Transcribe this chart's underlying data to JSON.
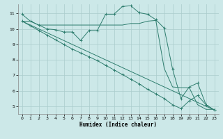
{
  "xlabel": "Humidex (Indice chaleur)",
  "bg_color": "#cce8e8",
  "grid_color": "#aacccc",
  "line_color": "#2e7d6e",
  "xlim": [
    -0.5,
    23.5
  ],
  "ylim": [
    4.5,
    11.6
  ],
  "xticks": [
    0,
    1,
    2,
    3,
    4,
    5,
    6,
    7,
    8,
    9,
    10,
    11,
    12,
    13,
    14,
    15,
    16,
    17,
    18,
    19,
    20,
    21,
    22,
    23
  ],
  "yticks": [
    5,
    6,
    7,
    8,
    9,
    10,
    11
  ],
  "line1_x": [
    0,
    1,
    2,
    3,
    4,
    5,
    6,
    7,
    8,
    9,
    10,
    11,
    12,
    13,
    14,
    15,
    16,
    17,
    18,
    19,
    20,
    21,
    22,
    23
  ],
  "line1_y": [
    10.95,
    10.5,
    10.25,
    10.0,
    9.95,
    9.8,
    9.8,
    9.25,
    9.9,
    9.9,
    10.95,
    10.95,
    11.45,
    11.5,
    11.05,
    10.95,
    10.6,
    10.05,
    7.4,
    5.5,
    6.25,
    6.5,
    5.1,
    4.75
  ],
  "line2_x": [
    0,
    1,
    2,
    3,
    4,
    5,
    6,
    7,
    8,
    9,
    10,
    11,
    12,
    13,
    14,
    15,
    16,
    17,
    18,
    19,
    20,
    21,
    22,
    23
  ],
  "line2_y": [
    10.5,
    10.5,
    10.25,
    10.25,
    10.25,
    10.25,
    10.25,
    10.25,
    10.25,
    10.25,
    10.25,
    10.25,
    10.25,
    10.35,
    10.35,
    10.5,
    10.55,
    7.45,
    6.25,
    6.2,
    6.2,
    5.1,
    4.8,
    4.8
  ],
  "line3_x": [
    0,
    1,
    2,
    3,
    4,
    5,
    6,
    7,
    8,
    9,
    10,
    11,
    12,
    13,
    14,
    15,
    16,
    17,
    18,
    19,
    20,
    21,
    22,
    23
  ],
  "line3_y": [
    10.5,
    10.2,
    9.9,
    9.6,
    9.3,
    9.0,
    8.7,
    8.45,
    8.2,
    7.95,
    7.65,
    7.35,
    7.05,
    6.75,
    6.45,
    6.1,
    5.8,
    5.5,
    5.1,
    4.85,
    5.35,
    5.7,
    5.1,
    4.75
  ],
  "line4_x": [
    0,
    23
  ],
  "line4_y": [
    10.5,
    4.75
  ]
}
